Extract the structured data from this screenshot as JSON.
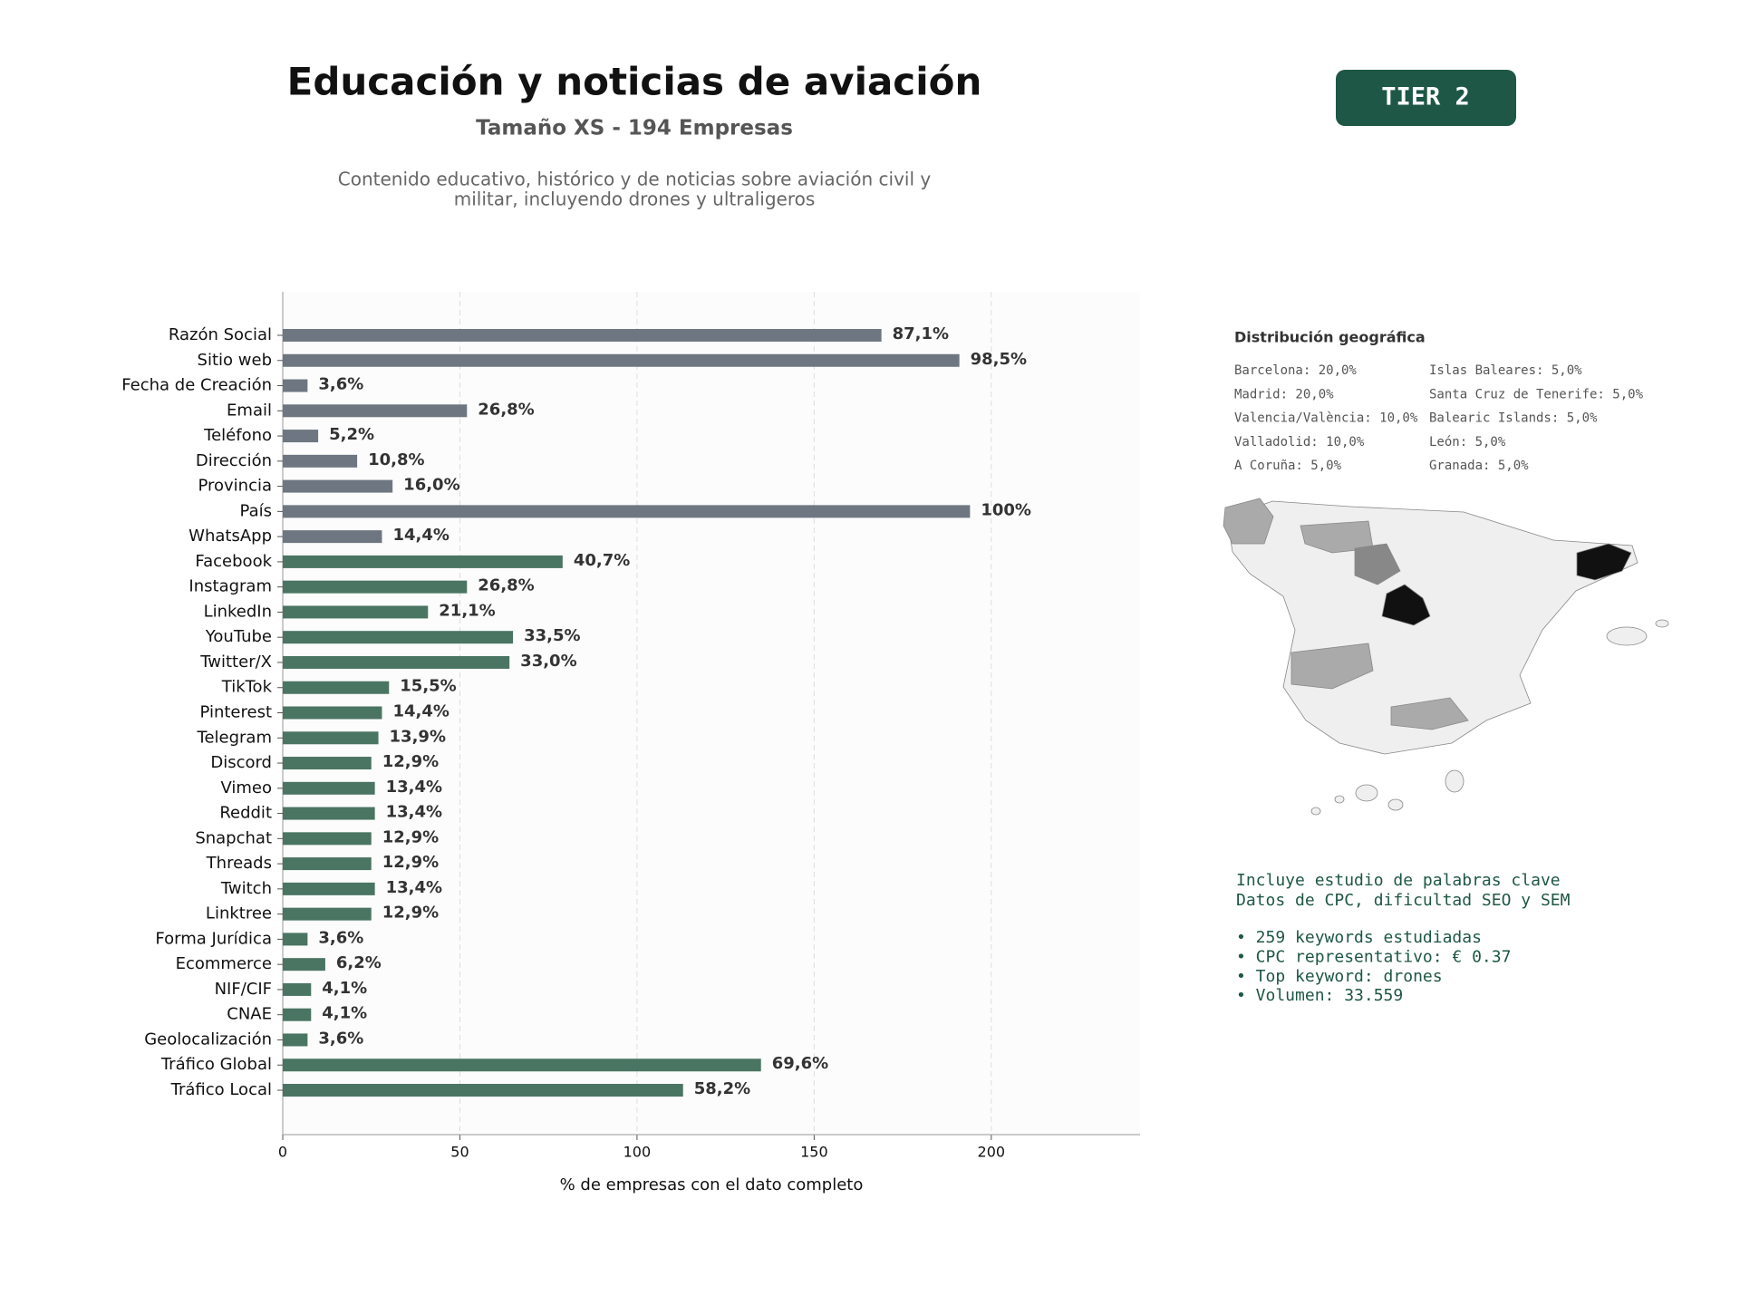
{
  "header": {
    "title": "Educación y noticias de aviación",
    "subtitle": "Tamaño XS - 194 Empresas",
    "description": [
      "Contenido educativo, histórico y de noticias sobre aviación civil y",
      "militar, incluyendo drones y ultraligeros"
    ],
    "badge": "TIER 2"
  },
  "chart_data": {
    "type": "bar",
    "orientation": "horizontal",
    "xlabel": "% de empresas con el dato completo",
    "categories": [
      "Razón Social",
      "Sitio web",
      "Fecha de Creación",
      "Email",
      "Teléfono",
      "Dirección",
      "Provincia",
      "País",
      "WhatsApp",
      "Facebook",
      "Instagram",
      "LinkedIn",
      "YouTube",
      "Twitter/X",
      "TikTok",
      "Pinterest",
      "Telegram",
      "Discord",
      "Vimeo",
      "Reddit",
      "Snapchat",
      "Threads",
      "Twitch",
      "Linktree",
      "Forma Jurídica",
      "Ecommerce",
      "NIF/CIF",
      "CNAE",
      "Geolocalización",
      "Tráfico Global",
      "Tráfico Local"
    ],
    "values": [
      169,
      191,
      7,
      52,
      10,
      21,
      31,
      194,
      28,
      79,
      52,
      41,
      65,
      64,
      30,
      28,
      27,
      25,
      26,
      26,
      25,
      25,
      26,
      25,
      7,
      12,
      8,
      8,
      7,
      135,
      113
    ],
    "value_labels": [
      "87,1%",
      "98,5%",
      "3,6%",
      "26,8%",
      "5,2%",
      "10,8%",
      "16,0%",
      "100%",
      "14,4%",
      "40,7%",
      "26,8%",
      "21,1%",
      "33,5%",
      "33,0%",
      "15,5%",
      "14,4%",
      "13,9%",
      "12,9%",
      "13,4%",
      "13,4%",
      "12,9%",
      "12,9%",
      "13,4%",
      "12,9%",
      "3,6%",
      "6,2%",
      "4,1%",
      "4,1%",
      "3,6%",
      "69,6%",
      "58,2%"
    ],
    "colors": [
      "#6e7781",
      "#6e7781",
      "#6e7781",
      "#6e7781",
      "#6e7781",
      "#6e7781",
      "#6e7781",
      "#6e7781",
      "#6e7781",
      "#4a7563",
      "#4a7563",
      "#4a7563",
      "#4a7563",
      "#4a7563",
      "#4a7563",
      "#4a7563",
      "#4a7563",
      "#4a7563",
      "#4a7563",
      "#4a7563",
      "#4a7563",
      "#4a7563",
      "#4a7563",
      "#4a7563",
      "#4a7563",
      "#4a7563",
      "#4a7563",
      "#4a7563",
      "#4a7563",
      "#4a7563",
      "#4a7563"
    ],
    "xlim": [
      0,
      242
    ],
    "xticks": [
      0,
      50,
      100,
      150,
      200
    ],
    "grid": true
  },
  "geo": {
    "title": "Distribución geográfica",
    "items": [
      "Barcelona: 20,0%",
      "Madrid: 20,0%",
      "Valencia/València: 10,0%",
      "Valladolid: 10,0%",
      "A Coruña: 5,0%",
      "Islas Baleares: 5,0%",
      "Santa Cruz de Tenerife: 5,0%",
      "Balearic Islands: 5,0%",
      "León: 5,0%",
      "Granada: 5,0%"
    ]
  },
  "keywords": {
    "intro": [
      "Incluye estudio de palabras clave",
      "Datos de CPC, dificultad SEO y SEM"
    ],
    "bullets": [
      "• 259 keywords estudiadas",
      "• CPC representativo: € 0.37",
      "• Top keyword: drones",
      "• Volumen: 33.559"
    ]
  }
}
